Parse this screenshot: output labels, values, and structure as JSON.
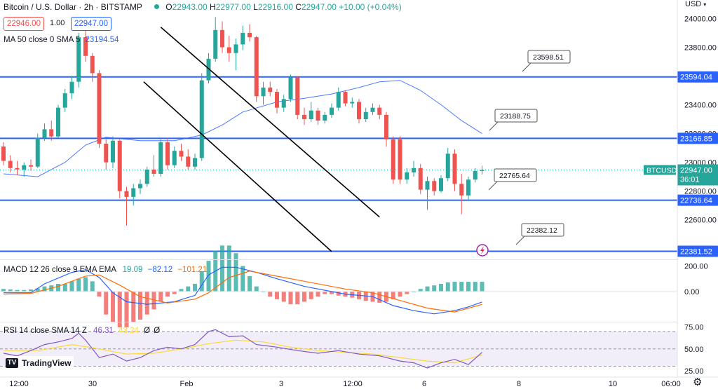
{
  "header": {
    "symbol_title": "Bitcoin / U.S. Dollar · 2h · BITSTAMP",
    "ohlc": {
      "o_label": "O",
      "o": "22943.00",
      "h_label": "H",
      "h": "22977.00",
      "l_label": "L",
      "l": "22916.00",
      "c_label": "C",
      "c": "22947.00",
      "change": "+10.00 (+0.04%)"
    },
    "sell_price": "22946.00",
    "spread": "1.00",
    "buy_price": "22947.00",
    "ma_label": "MA 50 close 0 SMA 5",
    "ma_value": "23194.54",
    "currency": "USD"
  },
  "colors": {
    "up": "#26a69a",
    "down": "#ef5350",
    "level": "#2962ff",
    "channel": "#000000",
    "ma": "#2962ff",
    "macd": "#2962ff",
    "signal": "#ff6d00",
    "rsi": "#7e57c2",
    "rsi_ma": "#fdd835"
  },
  "chart_data": [
    {
      "type": "candlestick",
      "title": "Bitcoin / U.S. Dollar · 2h · BITSTAMP",
      "ylim": [
        22350,
        24080
      ],
      "y_ticks": [
        "24000.00",
        "23800.00",
        "23600.00",
        "23400.00",
        "23200.00",
        "23000.00",
        "22800.00",
        "22600.00"
      ],
      "y_tick_values": [
        24000,
        23800,
        23600,
        23400,
        23200,
        23000,
        22800,
        22600
      ],
      "x_ticks": [
        "12:00",
        "30",
        "Feb",
        "3",
        "12:00",
        "6",
        "8",
        "10",
        "06:00"
      ],
      "horizontal_levels": [
        {
          "label": "23594.04",
          "value": 23594.04
        },
        {
          "label": "23166.85",
          "value": 23166.85
        },
        {
          "label": "22736.64",
          "value": 22736.64
        },
        {
          "label": "22381.52",
          "value": 22381.52
        }
      ],
      "callouts": [
        "23598.51",
        "23188.75",
        "22765.64",
        "22382.12"
      ],
      "current_price": {
        "symbol": "BTCUSD",
        "price": "22947.00",
        "countdown": "36:01",
        "value": 22947
      },
      "channel_upper": {
        "from": [
          23,
          23940
        ],
        "to": [
          55,
          22620
        ]
      },
      "channel_lower": {
        "from": [
          20.5,
          23560
        ],
        "to": [
          48,
          22380
        ]
      },
      "candles": [
        [
          0,
          23110,
          23140,
          22980,
          23010
        ],
        [
          1,
          23010,
          23050,
          22930,
          22960
        ],
        [
          2,
          22960,
          23010,
          22910,
          22950
        ],
        [
          3,
          22950,
          23000,
          22900,
          22980
        ],
        [
          4,
          22980,
          23020,
          22940,
          22970
        ],
        [
          5,
          22970,
          23200,
          22960,
          23170
        ],
        [
          6,
          23170,
          23270,
          23150,
          23230
        ],
        [
          7,
          23230,
          23290,
          23150,
          23180
        ],
        [
          8,
          23180,
          23400,
          23170,
          23380
        ],
        [
          9,
          23380,
          23510,
          23350,
          23480
        ],
        [
          10,
          23480,
          23600,
          23440,
          23560
        ],
        [
          11,
          23560,
          23900,
          23520,
          23870
        ],
        [
          12,
          23870,
          23960,
          23700,
          23740
        ],
        [
          13,
          23740,
          23760,
          23560,
          23620
        ],
        [
          14,
          23620,
          23640,
          23100,
          23130
        ],
        [
          15,
          23130,
          23160,
          22950,
          23000
        ],
        [
          16,
          23000,
          23180,
          22960,
          23150
        ],
        [
          17,
          23150,
          23160,
          22750,
          22800
        ],
        [
          18,
          22800,
          22830,
          22560,
          22760
        ],
        [
          19,
          22760,
          22850,
          22700,
          22820
        ],
        [
          20,
          22820,
          22880,
          22780,
          22850
        ],
        [
          21,
          22850,
          22970,
          22830,
          22950
        ],
        [
          22,
          22950,
          23050,
          22900,
          22920
        ],
        [
          23,
          22920,
          23160,
          22900,
          23140
        ],
        [
          24,
          23140,
          23170,
          22950,
          22980
        ],
        [
          25,
          22980,
          23110,
          22960,
          23080
        ],
        [
          26,
          23080,
          23130,
          23010,
          23040
        ],
        [
          27,
          23040,
          23090,
          22950,
          22970
        ],
        [
          28,
          22970,
          23060,
          22950,
          23030
        ],
        [
          29,
          23030,
          23620,
          23010,
          23570
        ],
        [
          30,
          23570,
          23760,
          23550,
          23720
        ],
        [
          31,
          23720,
          24010,
          23700,
          23920
        ],
        [
          32,
          23920,
          23980,
          23760,
          23800
        ],
        [
          33,
          23800,
          23880,
          23700,
          23760
        ],
        [
          34,
          23760,
          23860,
          23640,
          23820
        ],
        [
          35,
          23820,
          23950,
          23780,
          23900
        ],
        [
          36,
          23900,
          23960,
          23840,
          23870
        ],
        [
          37,
          23870,
          23880,
          23420,
          23460
        ],
        [
          38,
          23460,
          23560,
          23400,
          23520
        ],
        [
          39,
          23520,
          23560,
          23460,
          23490
        ],
        [
          40,
          23490,
          23510,
          23340,
          23380
        ],
        [
          41,
          23380,
          23470,
          23350,
          23440
        ],
        [
          42,
          23440,
          23610,
          23420,
          23590
        ],
        [
          43,
          23590,
          23600,
          23300,
          23330
        ],
        [
          44,
          23330,
          23380,
          23260,
          23300
        ],
        [
          45,
          23300,
          23420,
          23280,
          23360
        ],
        [
          46,
          23360,
          23380,
          23260,
          23290
        ],
        [
          47,
          23290,
          23350,
          23270,
          23330
        ],
        [
          48,
          23330,
          23410,
          23310,
          23380
        ],
        [
          49,
          23380,
          23520,
          23360,
          23490
        ],
        [
          50,
          23490,
          23500,
          23390,
          23410
        ],
        [
          51,
          23410,
          23450,
          23380,
          23420
        ],
        [
          52,
          23420,
          23440,
          23270,
          23300
        ],
        [
          53,
          23300,
          23380,
          23280,
          23350
        ],
        [
          54,
          23350,
          23410,
          23330,
          23380
        ],
        [
          55,
          23380,
          23400,
          23300,
          23330
        ],
        [
          56,
          23330,
          23350,
          23110,
          23160
        ],
        [
          57,
          23160,
          23180,
          22850,
          22880
        ],
        [
          58,
          23160,
          23180,
          22850,
          22880
        ],
        [
          59,
          22880,
          22960,
          22850,
          22930
        ],
        [
          60,
          22930,
          23010,
          22900,
          22960
        ],
        [
          61,
          22960,
          22990,
          22780,
          22810
        ],
        [
          62,
          22810,
          22900,
          22670,
          22870
        ],
        [
          63,
          22870,
          22890,
          22770,
          22800
        ],
        [
          64,
          22800,
          22910,
          22790,
          22890
        ],
        [
          65,
          22890,
          23100,
          22870,
          23060
        ],
        [
          66,
          23060,
          23090,
          22800,
          22850
        ],
        [
          67,
          22850,
          22920,
          22640,
          22770
        ],
        [
          68,
          22770,
          22900,
          22740,
          22880
        ],
        [
          69,
          22880,
          22960,
          22860,
          22940
        ],
        [
          70,
          22940,
          22977,
          22916,
          22947
        ]
      ],
      "ma50": [
        [
          0,
          22920
        ],
        [
          5,
          22900
        ],
        [
          9,
          23000
        ],
        [
          12,
          23120
        ],
        [
          15,
          23175
        ],
        [
          20,
          23150
        ],
        [
          25,
          23150
        ],
        [
          29,
          23190
        ],
        [
          32,
          23260
        ],
        [
          35,
          23350
        ],
        [
          40,
          23420
        ],
        [
          44,
          23445
        ],
        [
          48,
          23475
        ],
        [
          52,
          23520
        ],
        [
          55,
          23560
        ],
        [
          58,
          23570
        ],
        [
          61,
          23500
        ],
        [
          64,
          23400
        ],
        [
          67,
          23290
        ],
        [
          70,
          23200
        ]
      ]
    },
    {
      "type": "macd",
      "label": "MACD 12 26 close 9 EMA EMA",
      "values": [
        "19.09",
        "−82.12",
        "−101.21"
      ],
      "ylim": [
        -220,
        230
      ],
      "y_ticks": [
        "200.00",
        "0.00"
      ],
      "y_tick_values": [
        200,
        0
      ],
      "macd": [
        [
          0,
          -10
        ],
        [
          4,
          -10
        ],
        [
          6,
          60
        ],
        [
          10,
          150
        ],
        [
          12,
          170
        ],
        [
          14,
          110
        ],
        [
          16,
          -10
        ],
        [
          18,
          -80
        ],
        [
          21,
          -100
        ],
        [
          25,
          -80
        ],
        [
          28,
          -30
        ],
        [
          30,
          130
        ],
        [
          32,
          190
        ],
        [
          34,
          190
        ],
        [
          37,
          150
        ],
        [
          40,
          100
        ],
        [
          44,
          40
        ],
        [
          50,
          -20
        ],
        [
          54,
          -40
        ],
        [
          57,
          -110
        ],
        [
          60,
          -150
        ],
        [
          63,
          -175
        ],
        [
          66,
          -150
        ],
        [
          68,
          -120
        ],
        [
          70,
          -82
        ]
      ],
      "signal": [
        [
          0,
          -20
        ],
        [
          4,
          -15
        ],
        [
          8,
          40
        ],
        [
          12,
          120
        ],
        [
          14,
          130
        ],
        [
          17,
          50
        ],
        [
          20,
          -40
        ],
        [
          24,
          -90
        ],
        [
          28,
          -60
        ],
        [
          30,
          -10
        ],
        [
          33,
          110
        ],
        [
          36,
          160
        ],
        [
          40,
          120
        ],
        [
          45,
          70
        ],
        [
          50,
          20
        ],
        [
          54,
          -10
        ],
        [
          58,
          -70
        ],
        [
          62,
          -130
        ],
        [
          66,
          -160
        ],
        [
          70,
          -101
        ]
      ],
      "histogram": [
        [
          0,
          5
        ],
        [
          1,
          4
        ],
        [
          2,
          3
        ],
        [
          3,
          3
        ],
        [
          4,
          4
        ],
        [
          5,
          6
        ],
        [
          6,
          10
        ],
        [
          7,
          12
        ],
        [
          8,
          15
        ],
        [
          9,
          15
        ],
        [
          10,
          20
        ],
        [
          11,
          25
        ],
        [
          12,
          28
        ],
        [
          13,
          20
        ],
        [
          14,
          -10
        ],
        [
          15,
          -45
        ],
        [
          16,
          -60
        ],
        [
          17,
          -70
        ],
        [
          18,
          -70
        ],
        [
          19,
          -60
        ],
        [
          20,
          -55
        ],
        [
          21,
          -45
        ],
        [
          22,
          -35
        ],
        [
          23,
          -20
        ],
        [
          24,
          -10
        ],
        [
          25,
          -5
        ],
        [
          26,
          5
        ],
        [
          27,
          10
        ],
        [
          28,
          15
        ],
        [
          29,
          40
        ],
        [
          30,
          60
        ],
        [
          31,
          80
        ],
        [
          32,
          90
        ],
        [
          33,
          90
        ],
        [
          34,
          75
        ],
        [
          35,
          50
        ],
        [
          36,
          30
        ],
        [
          37,
          10
        ],
        [
          38,
          0
        ],
        [
          39,
          -10
        ],
        [
          40,
          -15
        ],
        [
          41,
          -20
        ],
        [
          42,
          -25
        ],
        [
          43,
          -25
        ],
        [
          44,
          -20
        ],
        [
          45,
          -15
        ],
        [
          46,
          -10
        ],
        [
          47,
          -5
        ],
        [
          48,
          -5
        ],
        [
          49,
          -8
        ],
        [
          50,
          -10
        ],
        [
          51,
          -12
        ],
        [
          52,
          -15
        ],
        [
          53,
          -18
        ],
        [
          54,
          -20
        ],
        [
          55,
          -22
        ],
        [
          56,
          -20
        ],
        [
          57,
          -15
        ],
        [
          58,
          -10
        ],
        [
          59,
          -5
        ],
        [
          60,
          0
        ],
        [
          61,
          5
        ],
        [
          62,
          10
        ],
        [
          63,
          12
        ],
        [
          64,
          15
        ],
        [
          65,
          18
        ],
        [
          66,
          19
        ],
        [
          67,
          19
        ],
        [
          68,
          19
        ],
        [
          69,
          19
        ],
        [
          70,
          19
        ]
      ]
    },
    {
      "type": "rsi",
      "label": "RSI 14 close SMA 14 Z",
      "values": [
        "46.31",
        "43.24",
        "Ø",
        "Ø"
      ],
      "ylim": [
        20,
        78
      ],
      "band": [
        30,
        70
      ],
      "y_ticks": [
        "75.00",
        "50.00",
        "25.00"
      ],
      "y_tick_values": [
        75,
        50,
        25
      ],
      "rsi": [
        [
          0,
          45
        ],
        [
          2,
          42
        ],
        [
          4,
          48
        ],
        [
          6,
          55
        ],
        [
          8,
          58
        ],
        [
          10,
          62
        ],
        [
          11,
          68
        ],
        [
          12,
          60
        ],
        [
          14,
          40
        ],
        [
          16,
          44
        ],
        [
          18,
          36
        ],
        [
          20,
          40
        ],
        [
          22,
          48
        ],
        [
          24,
          52
        ],
        [
          26,
          50
        ],
        [
          28,
          55
        ],
        [
          30,
          70
        ],
        [
          31,
          72
        ],
        [
          33,
          64
        ],
        [
          35,
          65
        ],
        [
          37,
          55
        ],
        [
          40,
          52
        ],
        [
          43,
          48
        ],
        [
          46,
          45
        ],
        [
          49,
          48
        ],
        [
          52,
          44
        ],
        [
          55,
          42
        ],
        [
          58,
          36
        ],
        [
          60,
          34
        ],
        [
          62,
          28
        ],
        [
          64,
          34
        ],
        [
          66,
          38
        ],
        [
          68,
          32
        ],
        [
          70,
          46
        ]
      ],
      "rsi_ma": [
        [
          0,
          48
        ],
        [
          5,
          48
        ],
        [
          10,
          55
        ],
        [
          14,
          50
        ],
        [
          18,
          44
        ],
        [
          22,
          45
        ],
        [
          26,
          50
        ],
        [
          30,
          56
        ],
        [
          34,
          60
        ],
        [
          38,
          58
        ],
        [
          42,
          52
        ],
        [
          46,
          48
        ],
        [
          50,
          46
        ],
        [
          54,
          44
        ],
        [
          58,
          40
        ],
        [
          62,
          36
        ],
        [
          66,
          34
        ],
        [
          70,
          43
        ]
      ]
    }
  ],
  "tradingview": {
    "brand": "TradingView"
  }
}
